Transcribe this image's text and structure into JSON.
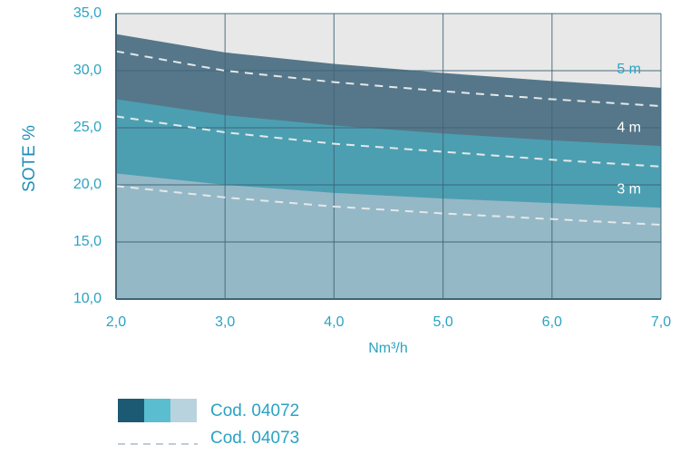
{
  "chart_data": {
    "type": "band-area",
    "x_label": "Nm³/h",
    "y_label": "SOTE %",
    "x": [
      2,
      3,
      4,
      5,
      6,
      7
    ],
    "xlim": [
      2,
      7
    ],
    "xticks": [
      {
        "value": 2,
        "label": "2,0"
      },
      {
        "value": 3,
        "label": "3,0"
      },
      {
        "value": 4,
        "label": "4,0"
      },
      {
        "value": 5,
        "label": "5,0"
      },
      {
        "value": 6,
        "label": "6,0"
      },
      {
        "value": 7,
        "label": "7,0"
      }
    ],
    "ylim": [
      10,
      35
    ],
    "yticks": [
      {
        "value": 10,
        "label": "10,0"
      },
      {
        "value": 15,
        "label": "15,0"
      },
      {
        "value": 20,
        "label": "20,0"
      },
      {
        "value": 25,
        "label": "25,0"
      },
      {
        "value": 30,
        "label": "30,0"
      },
      {
        "value": 35,
        "label": "35,0"
      }
    ],
    "grid": true,
    "series": [
      {
        "name": "5 m",
        "color": "#56778a",
        "label_color": "#2aa3c4",
        "values": [
          33.2,
          31.6,
          30.6,
          29.8,
          29.1,
          28.5
        ]
      },
      {
        "name": "4 m",
        "color": "#4c9fb1",
        "label_color": "#ffffff",
        "values": [
          27.5,
          26.1,
          25.2,
          24.5,
          23.9,
          23.4
        ]
      },
      {
        "name": "3 m",
        "color": "#95b8c6",
        "label_color": "#ffffff",
        "values": [
          21.0,
          20.0,
          19.3,
          18.8,
          18.4,
          18.0
        ]
      }
    ],
    "dashed_series": [
      {
        "color": "#e4e8ea",
        "values": [
          31.7,
          30.0,
          29.0,
          28.2,
          27.5,
          26.9
        ]
      },
      {
        "color": "#e4e8ea",
        "values": [
          26.0,
          24.6,
          23.6,
          22.9,
          22.2,
          21.6
        ]
      },
      {
        "color": "#e4e8ea",
        "values": [
          19.9,
          18.9,
          18.1,
          17.5,
          17.0,
          16.5
        ]
      }
    ],
    "legend": [
      {
        "label": "Cod. 04072",
        "colors": [
          "#1c5a73",
          "#5bbdd0",
          "#b9d3de"
        ]
      },
      {
        "label": "Cod. 04073",
        "color": "#a9bcc8"
      }
    ]
  }
}
